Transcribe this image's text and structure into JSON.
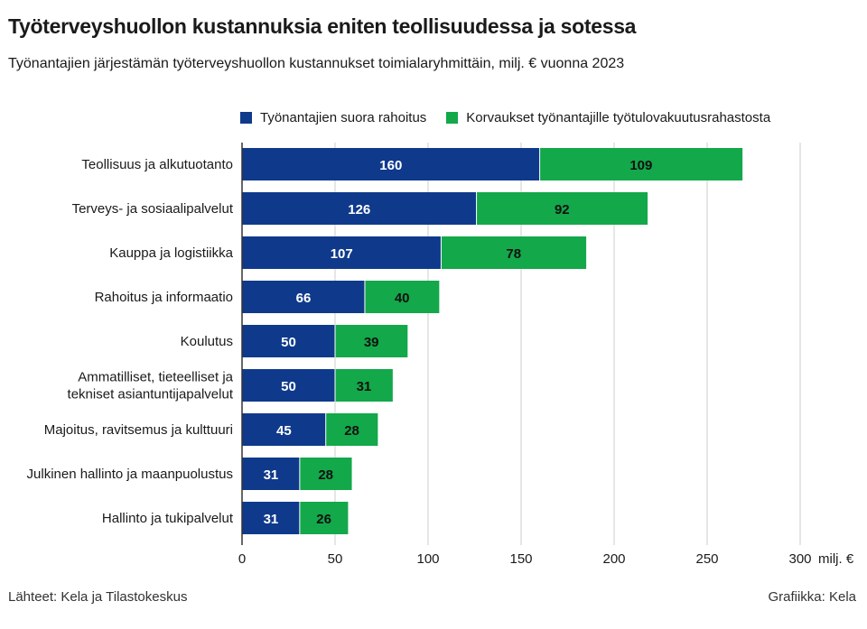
{
  "header": {
    "title": "Työterveyshuollon kustannuksia eniten teollisuudessa ja sotessa",
    "subtitle": "Työnantajien järjestämän työterveyshuollon kustannukset toimialaryhmittäin, milj. € vuonna 2023"
  },
  "footer": {
    "source": "Lähteet: Kela ja Tilastokeskus",
    "credit": "Grafiikka: Kela"
  },
  "colors": {
    "series1": "#0f3a8c",
    "series2": "#13a84a",
    "grid": "#cccccc",
    "axis": "#333333"
  },
  "chart_data": {
    "type": "bar",
    "orientation": "horizontal",
    "stacked": true,
    "categories": [
      [
        "Teollisuus ja alkutuotanto"
      ],
      [
        "Terveys- ja sosiaalipalvelut"
      ],
      [
        "Kauppa ja logistiikka"
      ],
      [
        "Rahoitus ja informaatio"
      ],
      [
        "Koulutus"
      ],
      [
        "Ammatilliset, tieteelliset ja",
        "tekniset asiantuntijapalvelut"
      ],
      [
        "Majoitus, ravitsemus ja kulttuuri"
      ],
      [
        "Julkinen hallinto ja maanpuolustus"
      ],
      [
        "Hallinto ja tukipalvelut"
      ]
    ],
    "series": [
      {
        "name": "Työnantajien suora rahoitus",
        "values": [
          160,
          126,
          107,
          66,
          50,
          50,
          45,
          31,
          31
        ]
      },
      {
        "name": "Korvaukset työnantajille työtulovakuutusrahastosta",
        "values": [
          109,
          92,
          78,
          40,
          39,
          31,
          28,
          28,
          26
        ]
      }
    ],
    "xlim": [
      0,
      300
    ],
    "ticks": [
      0,
      50,
      100,
      150,
      200,
      250,
      300
    ],
    "xlabel": "milj. €",
    "grid": true,
    "legend_position": "top"
  }
}
